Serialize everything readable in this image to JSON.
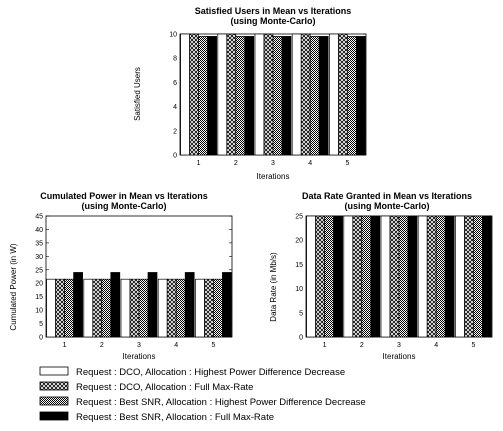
{
  "chart_data": [
    {
      "id": "satisfied",
      "type": "bar",
      "title": "Satisfied Users in Mean vs Iterations",
      "subtitle": "(using Monte-Carlo)",
      "xlabel": "Iterations",
      "ylabel": "Satisfied Users",
      "categories": [
        "1",
        "2",
        "3",
        "4",
        "5"
      ],
      "ylim": [
        0,
        10
      ],
      "yticks": [
        "0",
        "2",
        "4",
        "6",
        "8",
        "10"
      ],
      "grid": false,
      "series": [
        {
          "name": "Request : DCO, Allocation : Highest Power Difference Decrease",
          "values": [
            10,
            10,
            10,
            10,
            10
          ]
        },
        {
          "name": "Request : DCO, Allocation : Full Max-Rate",
          "values": [
            10,
            10,
            10,
            10,
            10
          ]
        },
        {
          "name": "Request : Best SNR, Allocation : Highest Power Difference Decrease",
          "values": [
            9.8,
            9.8,
            9.8,
            9.8,
            9.8
          ]
        },
        {
          "name": "Request : Best SNR, Allocation : Full Max-Rate",
          "values": [
            9.8,
            9.8,
            9.8,
            9.8,
            9.8
          ]
        }
      ]
    },
    {
      "id": "power",
      "type": "bar",
      "title": "Cumulated Power in Mean vs Iterations",
      "subtitle": "(using Monte-Carlo)",
      "xlabel": "Iterations",
      "ylabel": "Cumulated Power (in W)",
      "categories": [
        "1",
        "2",
        "3",
        "4",
        "5"
      ],
      "ylim": [
        0,
        45
      ],
      "yticks": [
        "0",
        "5",
        "10",
        "15",
        "20",
        "25",
        "30",
        "35",
        "40",
        "45"
      ],
      "grid": false,
      "series": [
        {
          "name": "Request : DCO, Allocation : Highest Power Difference Decrease",
          "values": [
            21.5,
            21.5,
            21.5,
            21.5,
            21.5
          ]
        },
        {
          "name": "Request : DCO, Allocation : Full Max-Rate",
          "values": [
            21.5,
            21.5,
            21.5,
            21.5,
            21.5
          ]
        },
        {
          "name": "Request : Best SNR, Allocation : Highest Power Difference Decrease",
          "values": [
            21.5,
            21.5,
            21.5,
            21.5,
            21.5
          ]
        },
        {
          "name": "Request : Best SNR, Allocation : Full Max-Rate",
          "values": [
            24,
            24,
            24,
            24,
            24
          ]
        }
      ]
    },
    {
      "id": "rate",
      "type": "bar",
      "title": "Data Rate Granted in Mean vs Iterations",
      "subtitle": "(using Monte-Carlo)",
      "xlabel": "Iterations",
      "ylabel": "Data Rate (in Mb/s)",
      "categories": [
        "1",
        "2",
        "3",
        "4",
        "5"
      ],
      "ylim": [
        0,
        25
      ],
      "yticks": [
        "0",
        "5",
        "10",
        "15",
        "20",
        "25"
      ],
      "grid": false,
      "series": [
        {
          "name": "Request : DCO, Allocation : Highest Power Difference Decrease",
          "values": [
            25,
            25,
            25,
            25,
            25
          ]
        },
        {
          "name": "Request : DCO, Allocation : Full Max-Rate",
          "values": [
            25,
            25,
            25,
            25,
            25
          ]
        },
        {
          "name": "Request : Best SNR, Allocation : Highest Power Difference Decrease",
          "values": [
            25,
            25,
            25,
            25,
            25
          ]
        },
        {
          "name": "Request : Best SNR, Allocation : Full Max-Rate",
          "values": [
            25,
            25,
            25,
            25,
            25
          ]
        }
      ]
    }
  ],
  "legend": {
    "placement": "bottom",
    "items": [
      {
        "label": "Request : DCO, Allocation : Highest Power Difference Decrease",
        "pattern": "white"
      },
      {
        "label": "Request : DCO, Allocation : Full Max-Rate",
        "pattern": "crosshatch"
      },
      {
        "label": "Request : Best SNR, Allocation : Highest Power Difference Decrease",
        "pattern": "checker"
      },
      {
        "label": "Request : Best SNR, Allocation : Full Max-Rate",
        "pattern": "black"
      }
    ]
  },
  "colors": {
    "stroke": "#000000",
    "background": "#ffffff",
    "fill_dark": "#000000"
  }
}
